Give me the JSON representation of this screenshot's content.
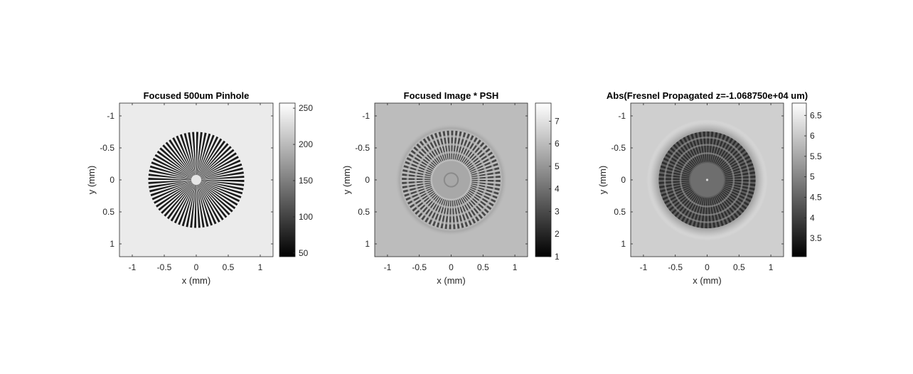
{
  "chart_data": [
    {
      "type": "heatmap",
      "title": "Focused 500um Pinhole",
      "xlabel": "x (mm)",
      "ylabel": "y (mm)",
      "xlim": [
        -1.2,
        1.2
      ],
      "ylim": [
        -1.2,
        1.2
      ],
      "xticks": [
        -1,
        -0.5,
        0,
        0.5,
        1
      ],
      "xtick_labels": [
        "-1",
        "-0.5",
        "0",
        "0.5",
        "1"
      ],
      "yticks": [
        -1,
        -0.5,
        0,
        0.5,
        1
      ],
      "ytick_labels": [
        "-1",
        "-0.5",
        "0",
        "0.5",
        "1"
      ],
      "y_reversed": true,
      "colormap": "gray",
      "colorbar": {
        "range": [
          45,
          257
        ],
        "ticks": [
          50,
          100,
          150,
          200,
          250
        ],
        "tick_labels": [
          "50",
          "100",
          "150",
          "200",
          "250"
        ]
      },
      "background_value": 240,
      "pattern": "siemens-star",
      "pattern_radius_mm": 0.75,
      "spokes": 72
    },
    {
      "type": "heatmap",
      "title": "Focused Image * PSH",
      "xlabel": "x (mm)",
      "ylabel": "y (mm)",
      "xlim": [
        -1.2,
        1.2
      ],
      "ylim": [
        -1.2,
        1.2
      ],
      "xticks": [
        -1,
        -0.5,
        0,
        0.5,
        1
      ],
      "xtick_labels": [
        "-1",
        "-0.5",
        "0",
        "0.5",
        "1"
      ],
      "yticks": [
        -1,
        -0.5,
        0,
        0.5,
        1
      ],
      "ytick_labels": [
        "-1",
        "-0.5",
        "0",
        "0.5",
        "1"
      ],
      "y_reversed": true,
      "colormap": "gray",
      "colorbar": {
        "range": [
          1,
          7.8
        ],
        "ticks": [
          1,
          2,
          3,
          4,
          5,
          6,
          7
        ],
        "tick_labels": [
          "1",
          "2",
          "3",
          "4",
          "5",
          "6",
          "7"
        ]
      },
      "background_value": 6.0,
      "pattern": "blurred-siemens-star",
      "pattern_radius_mm": 0.9,
      "spokes": 72
    },
    {
      "type": "heatmap",
      "title": "Abs(Fresnel Propagated z=-1.068750e+04 um)",
      "xlabel": "x (mm)",
      "ylabel": "y (mm)",
      "xlim": [
        -1.2,
        1.2
      ],
      "ylim": [
        -1.2,
        1.2
      ],
      "xticks": [
        -1,
        -0.5,
        0,
        0.5,
        1
      ],
      "xtick_labels": [
        "-1",
        "-0.5",
        "0",
        "0.5",
        "1"
      ],
      "yticks": [
        -1,
        -0.5,
        0,
        0.5,
        1
      ],
      "ytick_labels": [
        "-1",
        "-0.5",
        "0",
        "0.5",
        "1"
      ],
      "y_reversed": true,
      "colormap": "gray",
      "colorbar": {
        "range": [
          3.05,
          6.8
        ],
        "ticks": [
          3.5,
          4,
          4.5,
          5,
          5.5,
          6,
          6.5
        ],
        "tick_labels": [
          "3.5",
          "4",
          "4.5",
          "5",
          "5.5",
          "6",
          "6.5"
        ]
      },
      "background_value": 6.1,
      "pattern": "fresnel-siemens-star",
      "pattern_radius_mm": 0.95,
      "spokes": 72
    }
  ]
}
